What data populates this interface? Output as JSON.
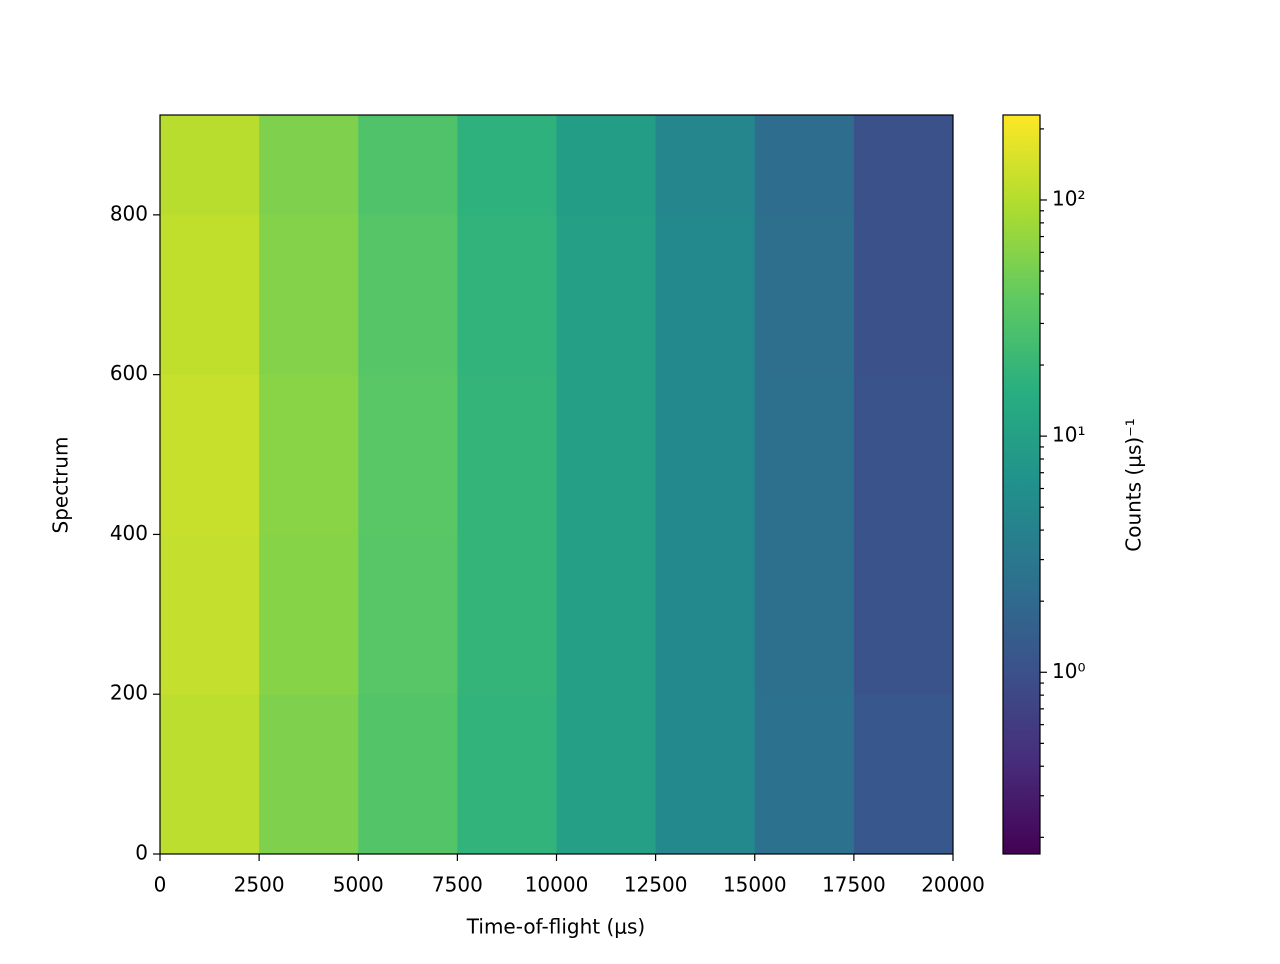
{
  "chart_data": {
    "type": "heatmap",
    "xlabel": "Time-of-flight (μs)",
    "ylabel": "Spectrum",
    "colorbar_label": "Counts (μs)⁻¹",
    "x_edges": [
      0,
      2500,
      5000,
      7500,
      10000,
      12500,
      15000,
      17500,
      20000
    ],
    "y_edges": [
      0,
      200,
      400,
      600,
      800,
      925
    ],
    "values": [
      [
        110,
        55,
        32,
        18,
        10,
        5,
        2.5,
        1.2
      ],
      [
        120,
        60,
        34,
        19,
        10,
        5,
        2.4,
        1.1
      ],
      [
        125,
        62,
        35,
        19,
        10,
        5,
        2.4,
        1.1
      ],
      [
        115,
        58,
        33,
        18,
        10,
        5,
        2.3,
        1.0
      ],
      [
        105,
        55,
        30,
        17,
        9,
        4.5,
        2.2,
        1.0
      ]
    ],
    "xlim": [
      0,
      20000
    ],
    "ylim": [
      0,
      925
    ],
    "xticks": [
      0,
      2500,
      5000,
      7500,
      10000,
      12500,
      15000,
      17500,
      20000
    ],
    "yticks": [
      0,
      200,
      400,
      600,
      800
    ],
    "clim": [
      0.17,
      229
    ],
    "color_scale": "log",
    "colormap": "viridis",
    "cticks": [
      {
        "value": 1,
        "label": "10⁰"
      },
      {
        "value": 10,
        "label": "10¹"
      },
      {
        "value": 100,
        "label": "10²"
      }
    ]
  }
}
